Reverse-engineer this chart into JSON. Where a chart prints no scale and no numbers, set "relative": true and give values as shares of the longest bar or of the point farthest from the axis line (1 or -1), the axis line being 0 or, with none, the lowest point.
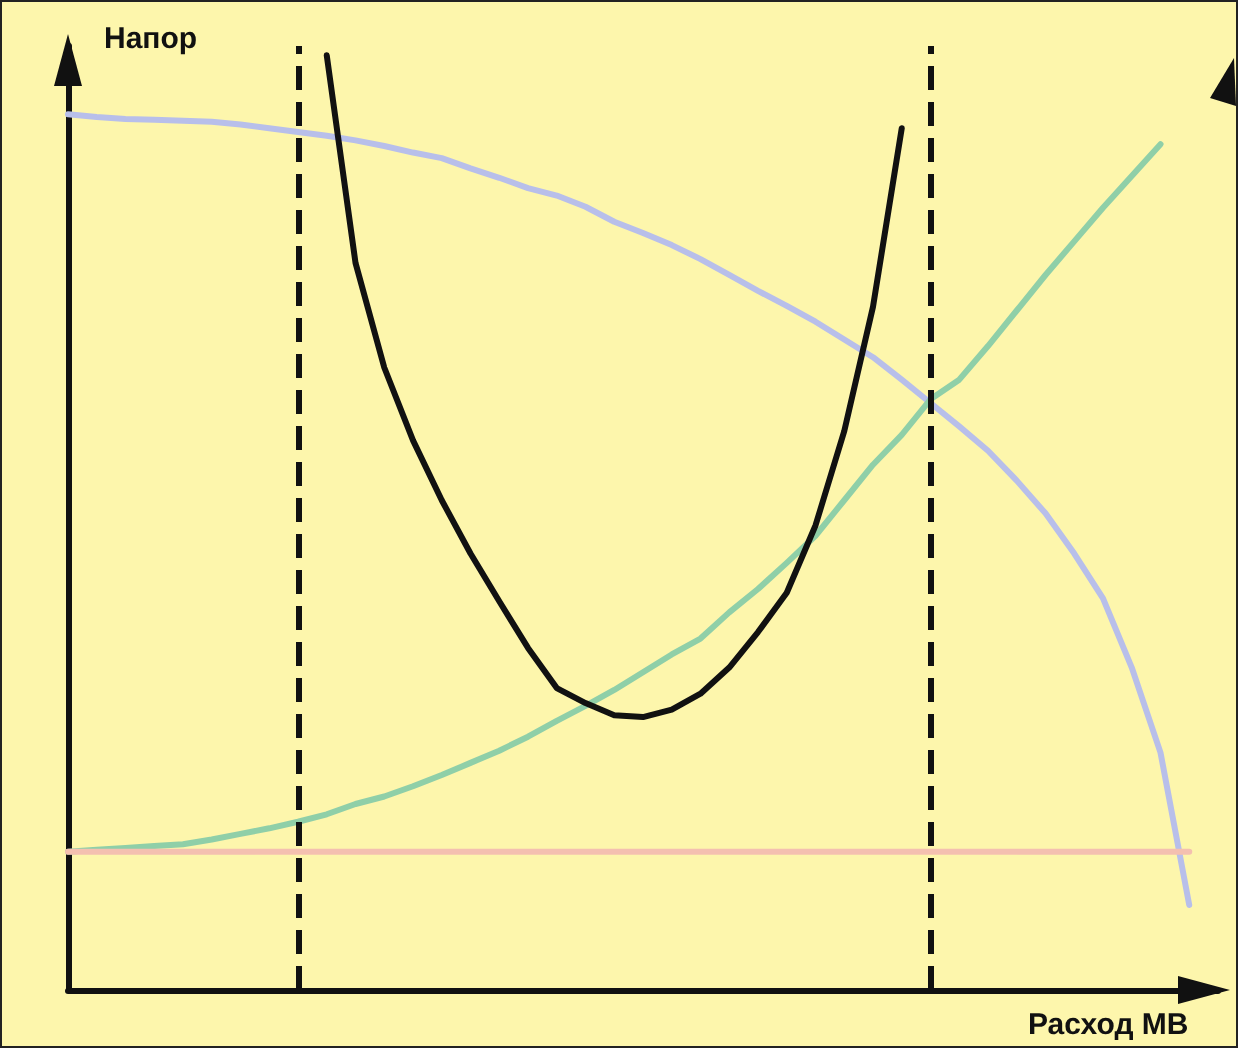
{
  "chart_data": {
    "type": "line",
    "relative": true,
    "xlabel": "Расход МВ",
    "ylabel": "Напор",
    "grid": false,
    "marker": "none",
    "line_style": "solid",
    "categories": [
      null,
      null,
      null,
      null,
      null,
      null,
      null,
      null,
      null,
      null,
      null,
      null,
      null,
      null,
      null,
      null,
      null,
      null,
      null,
      null,
      null,
      null,
      null,
      null,
      null,
      null,
      null,
      null,
      null,
      null,
      null,
      null,
      null,
      null,
      null,
      null,
      null,
      null,
      null,
      null,
      null
    ],
    "series": [
      {
        "color": "#b8bfea",
        "values": [
          0.937,
          0.934,
          0.932,
          0.931,
          0.93,
          0.929,
          0.926,
          0.922,
          0.918,
          0.914,
          0.909,
          0.903,
          0.896,
          0.89,
          0.879,
          0.869,
          0.858,
          0.85,
          0.838,
          0.822,
          0.81,
          0.797,
          0.782,
          0.765,
          0.748,
          0.732,
          0.715,
          0.696,
          0.677,
          0.653,
          0.628,
          0.603,
          0.577,
          0.545,
          0.51,
          0.467,
          0.419,
          0.345,
          0.254,
          0.091,
          null
        ]
      },
      {
        "color": "#8fcfa8",
        "values": [
          0.148,
          0.15,
          0.152,
          0.154,
          0.156,
          0.161,
          0.167,
          0.173,
          0.18,
          0.188,
          0.199,
          0.207,
          0.218,
          0.23,
          0.243,
          0.256,
          0.271,
          0.288,
          0.304,
          0.321,
          0.34,
          0.359,
          0.376,
          0.404,
          0.429,
          0.457,
          0.486,
          0.524,
          0.562,
          0.594,
          0.632,
          0.653,
          0.689,
          0.727,
          0.765,
          0.801,
          0.837,
          0.871,
          0.905,
          null,
          null
        ]
      },
      {
        "color": "#f4c0b0",
        "values": [
          0.148,
          0.148,
          0.148,
          0.148,
          0.148,
          0.148,
          0.148,
          0.148,
          0.148,
          0.148,
          0.148,
          0.148,
          0.148,
          0.148,
          0.148,
          0.148,
          0.148,
          0.148,
          0.148,
          0.148,
          0.148,
          0.148,
          0.148,
          0.148,
          0.148,
          0.148,
          0.148,
          0.148,
          0.148,
          0.148,
          0.148,
          0.148,
          0.148,
          0.148,
          0.148,
          0.148,
          0.148,
          0.148,
          0.148,
          0.148,
          null
        ]
      },
      {
        "color": "#111111",
        "values": [
          null,
          null,
          null,
          null,
          null,
          null,
          null,
          null,
          null,
          1,
          0.778,
          0.666,
          0.588,
          0.524,
          0.467,
          0.416,
          0.366,
          0.323,
          0.307,
          0.294,
          0.292,
          0.3,
          0.317,
          0.345,
          0.383,
          0.425,
          0.497,
          0.598,
          0.731,
          0.922,
          null,
          null,
          null,
          null,
          null,
          null,
          null,
          null,
          null,
          null,
          null
        ]
      }
    ]
  }
}
